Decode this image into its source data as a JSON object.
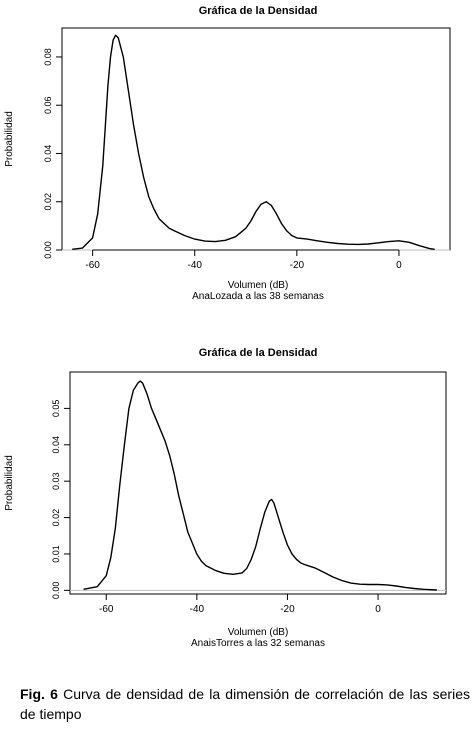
{
  "chart_data": [
    {
      "type": "line",
      "title": "Gráfica de la Densidad",
      "xlabel": "Volumen (dB)",
      "subtitle": "AnaLozada a las 38 semanas",
      "ylabel": "Probabilidad",
      "xlim": [
        -66,
        10
      ],
      "ylim": [
        0,
        0.092
      ],
      "x_ticks": [
        -60,
        -40,
        -20,
        0
      ],
      "x_tick_labels": [
        "-60",
        "-40",
        "-20",
        "0"
      ],
      "y_ticks": [
        0,
        0.02,
        0.04,
        0.06,
        0.08
      ],
      "y_tick_labels": [
        "0.00",
        "0.02",
        "0.04",
        "0.06",
        "0.08"
      ],
      "baseline": 0,
      "series": [
        {
          "x": [
            -64,
            -62,
            -60,
            -59,
            -58,
            -57,
            -56.5,
            -56,
            -55.5,
            -55,
            -54,
            -53,
            -52,
            -51,
            -50,
            -49,
            -48,
            -47,
            -46,
            -45,
            -44,
            -42,
            -40,
            -38,
            -36,
            -34,
            -32,
            -30,
            -29,
            -28,
            -27,
            -26,
            -25,
            -24,
            -23,
            -22,
            -21,
            -20,
            -18,
            -16,
            -14,
            -12,
            -10,
            -8,
            -6,
            -4,
            -2,
            0,
            2,
            4,
            6,
            7
          ],
          "y": [
            0.0003,
            0.0008,
            0.005,
            0.015,
            0.035,
            0.068,
            0.08,
            0.087,
            0.089,
            0.088,
            0.08,
            0.066,
            0.052,
            0.04,
            0.03,
            0.022,
            0.017,
            0.013,
            0.011,
            0.009,
            0.008,
            0.006,
            0.0045,
            0.0037,
            0.0035,
            0.004,
            0.0055,
            0.009,
            0.012,
            0.016,
            0.019,
            0.02,
            0.0185,
            0.015,
            0.011,
            0.008,
            0.006,
            0.005,
            0.0045,
            0.0038,
            0.0032,
            0.0027,
            0.0024,
            0.0023,
            0.0025,
            0.003,
            0.0035,
            0.0038,
            0.0032,
            0.0018,
            0.0006,
            0.0003
          ]
        }
      ]
    },
    {
      "type": "line",
      "title": "Gráfica de la Densidad",
      "xlabel": "Volumen (dB)",
      "subtitle": "AnaisTorres a las 32 semanas",
      "ylabel": "Probabilidad",
      "xlim": [
        -68,
        15
      ],
      "ylim": [
        -0.001,
        0.06
      ],
      "x_ticks": [
        -60,
        -40,
        -20,
        0
      ],
      "x_tick_labels": [
        "-60",
        "-40",
        "-20",
        "0"
      ],
      "y_ticks": [
        0,
        0.01,
        0.02,
        0.03,
        0.04,
        0.05
      ],
      "y_tick_labels": [
        "0.00",
        "0.01",
        "0.02",
        "0.03",
        "0.04",
        "0.05"
      ],
      "baseline": 0,
      "series": [
        {
          "x": [
            -65,
            -62,
            -60,
            -59,
            -58,
            -57,
            -56,
            -55,
            -54,
            -53,
            -52.5,
            -52,
            -51,
            -50,
            -49,
            -48,
            -47,
            -46,
            -45,
            -44,
            -43,
            -42,
            -41,
            -40,
            -39,
            -38,
            -36,
            -34,
            -32,
            -30,
            -29,
            -28,
            -27,
            -26,
            -25,
            -24,
            -23.5,
            -23,
            -22,
            -21,
            -20,
            -19,
            -18,
            -17,
            -16,
            -14,
            -12,
            -10,
            -8,
            -6,
            -4,
            -2,
            0,
            2,
            4,
            6,
            8,
            10,
            13
          ],
          "y": [
            0.0003,
            0.001,
            0.004,
            0.009,
            0.017,
            0.029,
            0.04,
            0.05,
            0.055,
            0.057,
            0.0575,
            0.057,
            0.054,
            0.05,
            0.047,
            0.044,
            0.041,
            0.037,
            0.032,
            0.026,
            0.021,
            0.016,
            0.013,
            0.01,
            0.008,
            0.0068,
            0.0055,
            0.0047,
            0.0044,
            0.0048,
            0.006,
            0.0085,
            0.012,
            0.017,
            0.0215,
            0.0245,
            0.025,
            0.024,
            0.02,
            0.016,
            0.0125,
            0.01,
            0.0085,
            0.0075,
            0.007,
            0.0062,
            0.005,
            0.0037,
            0.0027,
            0.002,
            0.0017,
            0.0016,
            0.0016,
            0.0015,
            0.0012,
            0.0008,
            0.0005,
            0.0003,
            0.0001
          ]
        }
      ]
    }
  ],
  "caption": {
    "label": "Fig. 6",
    "text": " Curva de densidad de la dimensión de correlación de las series de tiempo"
  }
}
